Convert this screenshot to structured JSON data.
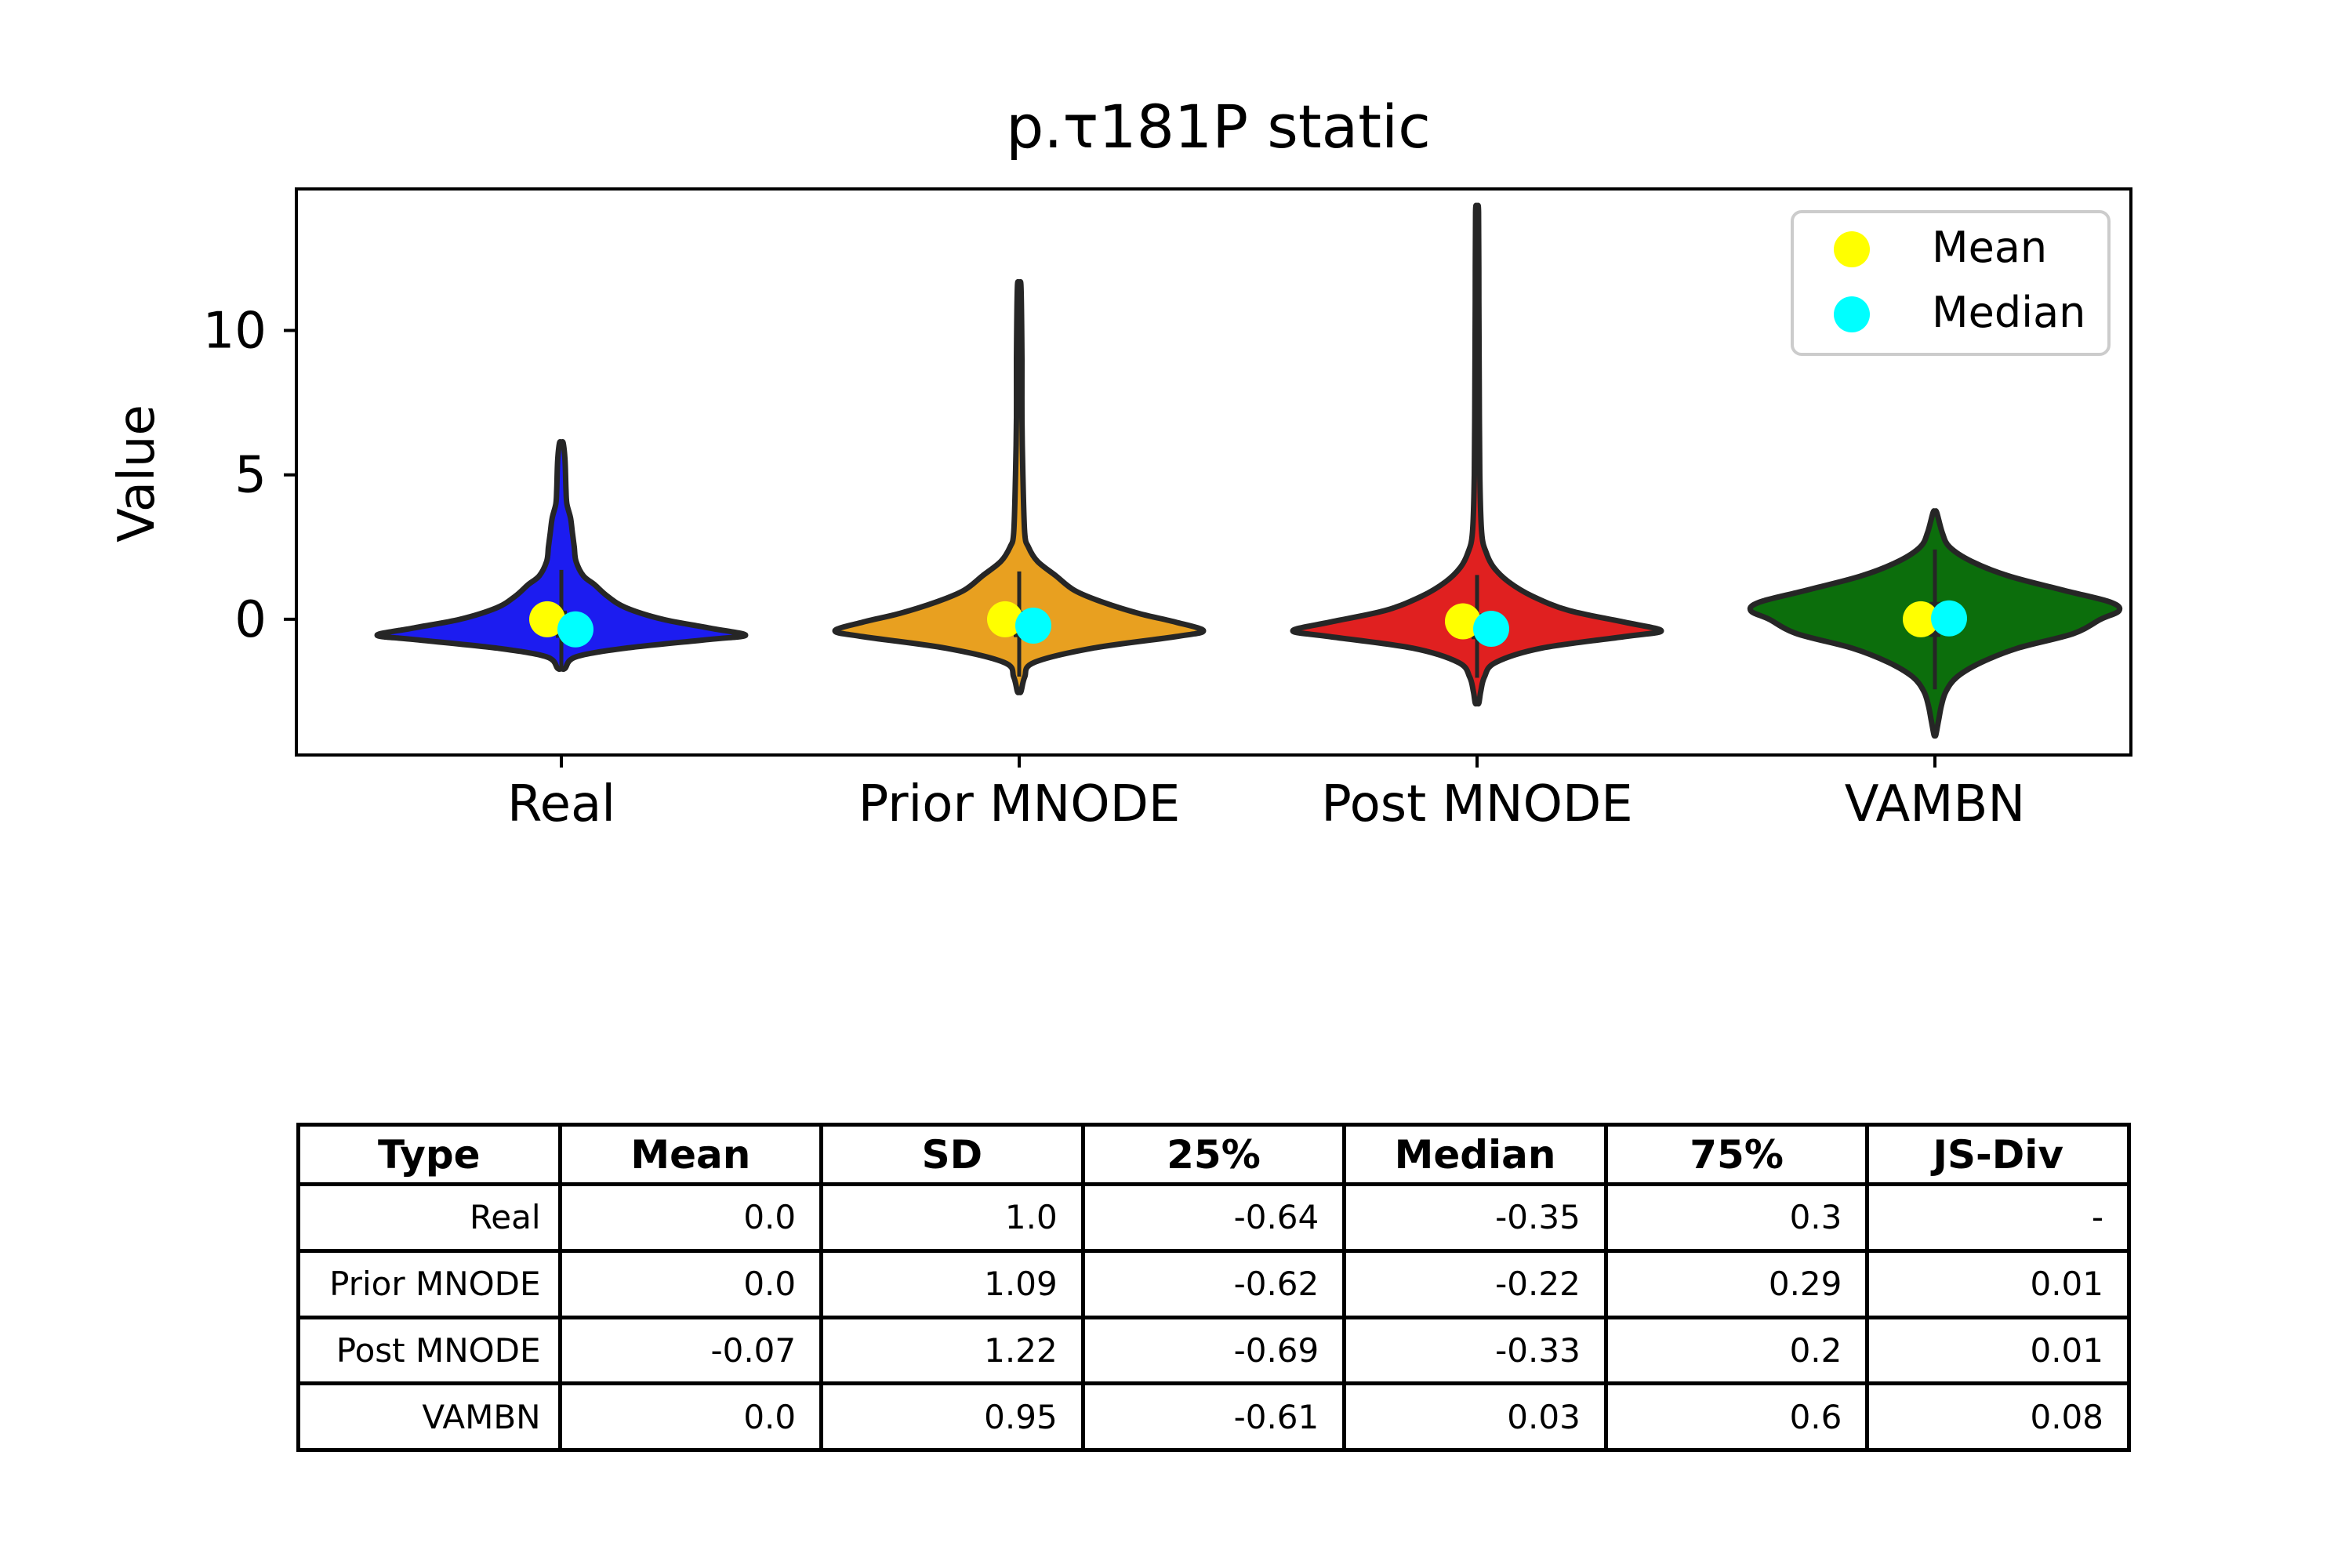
{
  "chart_data": {
    "type": "violin",
    "title": "p.τ181P static",
    "ylabel": "Value",
    "xlabel": "",
    "ylim": [
      -4.7,
      14.9
    ],
    "yticks": [
      0,
      5,
      10
    ],
    "grid": false,
    "legend": {
      "placement": "top-right",
      "entries": [
        "Mean",
        "Median"
      ]
    },
    "marker_colors": {
      "mean": "#ffff00",
      "median": "#00ffff"
    },
    "categories": [
      "Real",
      "Prior MNODE",
      "Post MNODE",
      "VAMBN"
    ],
    "series": [
      {
        "category": "Real",
        "color": "#1c1cf0",
        "mean": 0.0,
        "median": -0.35,
        "q1": -0.64,
        "q3": 0.3,
        "min": -1.7,
        "max": 6.1,
        "density": [
          [
            -1.7,
            0.02
          ],
          [
            -1.3,
            0.08
          ],
          [
            -1.0,
            0.35
          ],
          [
            -0.7,
            0.8
          ],
          [
            -0.55,
            1.0
          ],
          [
            -0.3,
            0.8
          ],
          [
            0.0,
            0.55
          ],
          [
            0.4,
            0.35
          ],
          [
            0.8,
            0.25
          ],
          [
            1.2,
            0.18
          ],
          [
            1.5,
            0.12
          ],
          [
            2.0,
            0.08
          ],
          [
            2.5,
            0.07
          ],
          [
            3.0,
            0.06
          ],
          [
            3.5,
            0.05
          ],
          [
            4.0,
            0.03
          ],
          [
            4.5,
            0.025
          ],
          [
            5.5,
            0.02
          ],
          [
            6.1,
            0.01
          ]
        ]
      },
      {
        "category": "Prior MNODE",
        "color": "#e8a020",
        "mean": 0.0,
        "median": -0.22,
        "q1": -0.62,
        "q3": 0.29,
        "min": -2.5,
        "max": 11.5,
        "density": [
          [
            -2.5,
            0.01
          ],
          [
            -2.0,
            0.03
          ],
          [
            -1.5,
            0.08
          ],
          [
            -1.0,
            0.4
          ],
          [
            -0.6,
            0.85
          ],
          [
            -0.4,
            1.0
          ],
          [
            -0.1,
            0.85
          ],
          [
            0.2,
            0.65
          ],
          [
            0.6,
            0.45
          ],
          [
            1.0,
            0.3
          ],
          [
            1.5,
            0.2
          ],
          [
            2.0,
            0.1
          ],
          [
            2.5,
            0.05
          ],
          [
            3.0,
            0.03
          ],
          [
            5.0,
            0.02
          ],
          [
            7.0,
            0.015
          ],
          [
            9.0,
            0.015
          ],
          [
            11.5,
            0.01
          ]
        ]
      },
      {
        "category": "Post MNODE",
        "color": "#e02020",
        "mean": -0.07,
        "median": -0.33,
        "q1": -0.69,
        "q3": 0.2,
        "min": -2.9,
        "max": 14.1,
        "density": [
          [
            -2.9,
            0.01
          ],
          [
            -2.5,
            0.02
          ],
          [
            -2.0,
            0.04
          ],
          [
            -1.5,
            0.1
          ],
          [
            -1.0,
            0.35
          ],
          [
            -0.6,
            0.8
          ],
          [
            -0.4,
            1.0
          ],
          [
            -0.1,
            0.8
          ],
          [
            0.3,
            0.5
          ],
          [
            0.8,
            0.3
          ],
          [
            1.3,
            0.17
          ],
          [
            1.8,
            0.09
          ],
          [
            2.3,
            0.05
          ],
          [
            3.0,
            0.025
          ],
          [
            5.0,
            0.015
          ],
          [
            8.0,
            0.012
          ],
          [
            11.0,
            0.01
          ],
          [
            14.1,
            0.008
          ]
        ]
      },
      {
        "category": "VAMBN",
        "color": "#0c6e0c",
        "mean": 0.0,
        "median": 0.03,
        "q1": -0.61,
        "q3": 0.6,
        "min": -4.0,
        "max": 3.7,
        "density": [
          [
            -4.0,
            0.005
          ],
          [
            -3.5,
            0.02
          ],
          [
            -3.0,
            0.035
          ],
          [
            -2.5,
            0.06
          ],
          [
            -2.0,
            0.12
          ],
          [
            -1.5,
            0.25
          ],
          [
            -1.0,
            0.45
          ],
          [
            -0.5,
            0.75
          ],
          [
            0.0,
            0.9
          ],
          [
            0.3,
            1.0
          ],
          [
            0.6,
            0.95
          ],
          [
            1.0,
            0.7
          ],
          [
            1.5,
            0.4
          ],
          [
            2.0,
            0.2
          ],
          [
            2.5,
            0.08
          ],
          [
            3.0,
            0.04
          ],
          [
            3.7,
            0.01
          ]
        ]
      }
    ]
  },
  "table": {
    "headers": [
      "Type",
      "Mean",
      "SD",
      "25%",
      "Median",
      "75%",
      "JS-Div"
    ],
    "rows": [
      [
        "Real",
        "0.0",
        "1.0",
        "-0.64",
        "-0.35",
        "0.3",
        "-"
      ],
      [
        "Prior MNODE",
        "0.0",
        "1.09",
        "-0.62",
        "-0.22",
        "0.29",
        "0.01"
      ],
      [
        "Post MNODE",
        "-0.07",
        "1.22",
        "-0.69",
        "-0.33",
        "0.2",
        "0.01"
      ],
      [
        "VAMBN",
        "0.0",
        "0.95",
        "-0.61",
        "0.03",
        "0.6",
        "0.08"
      ]
    ]
  }
}
